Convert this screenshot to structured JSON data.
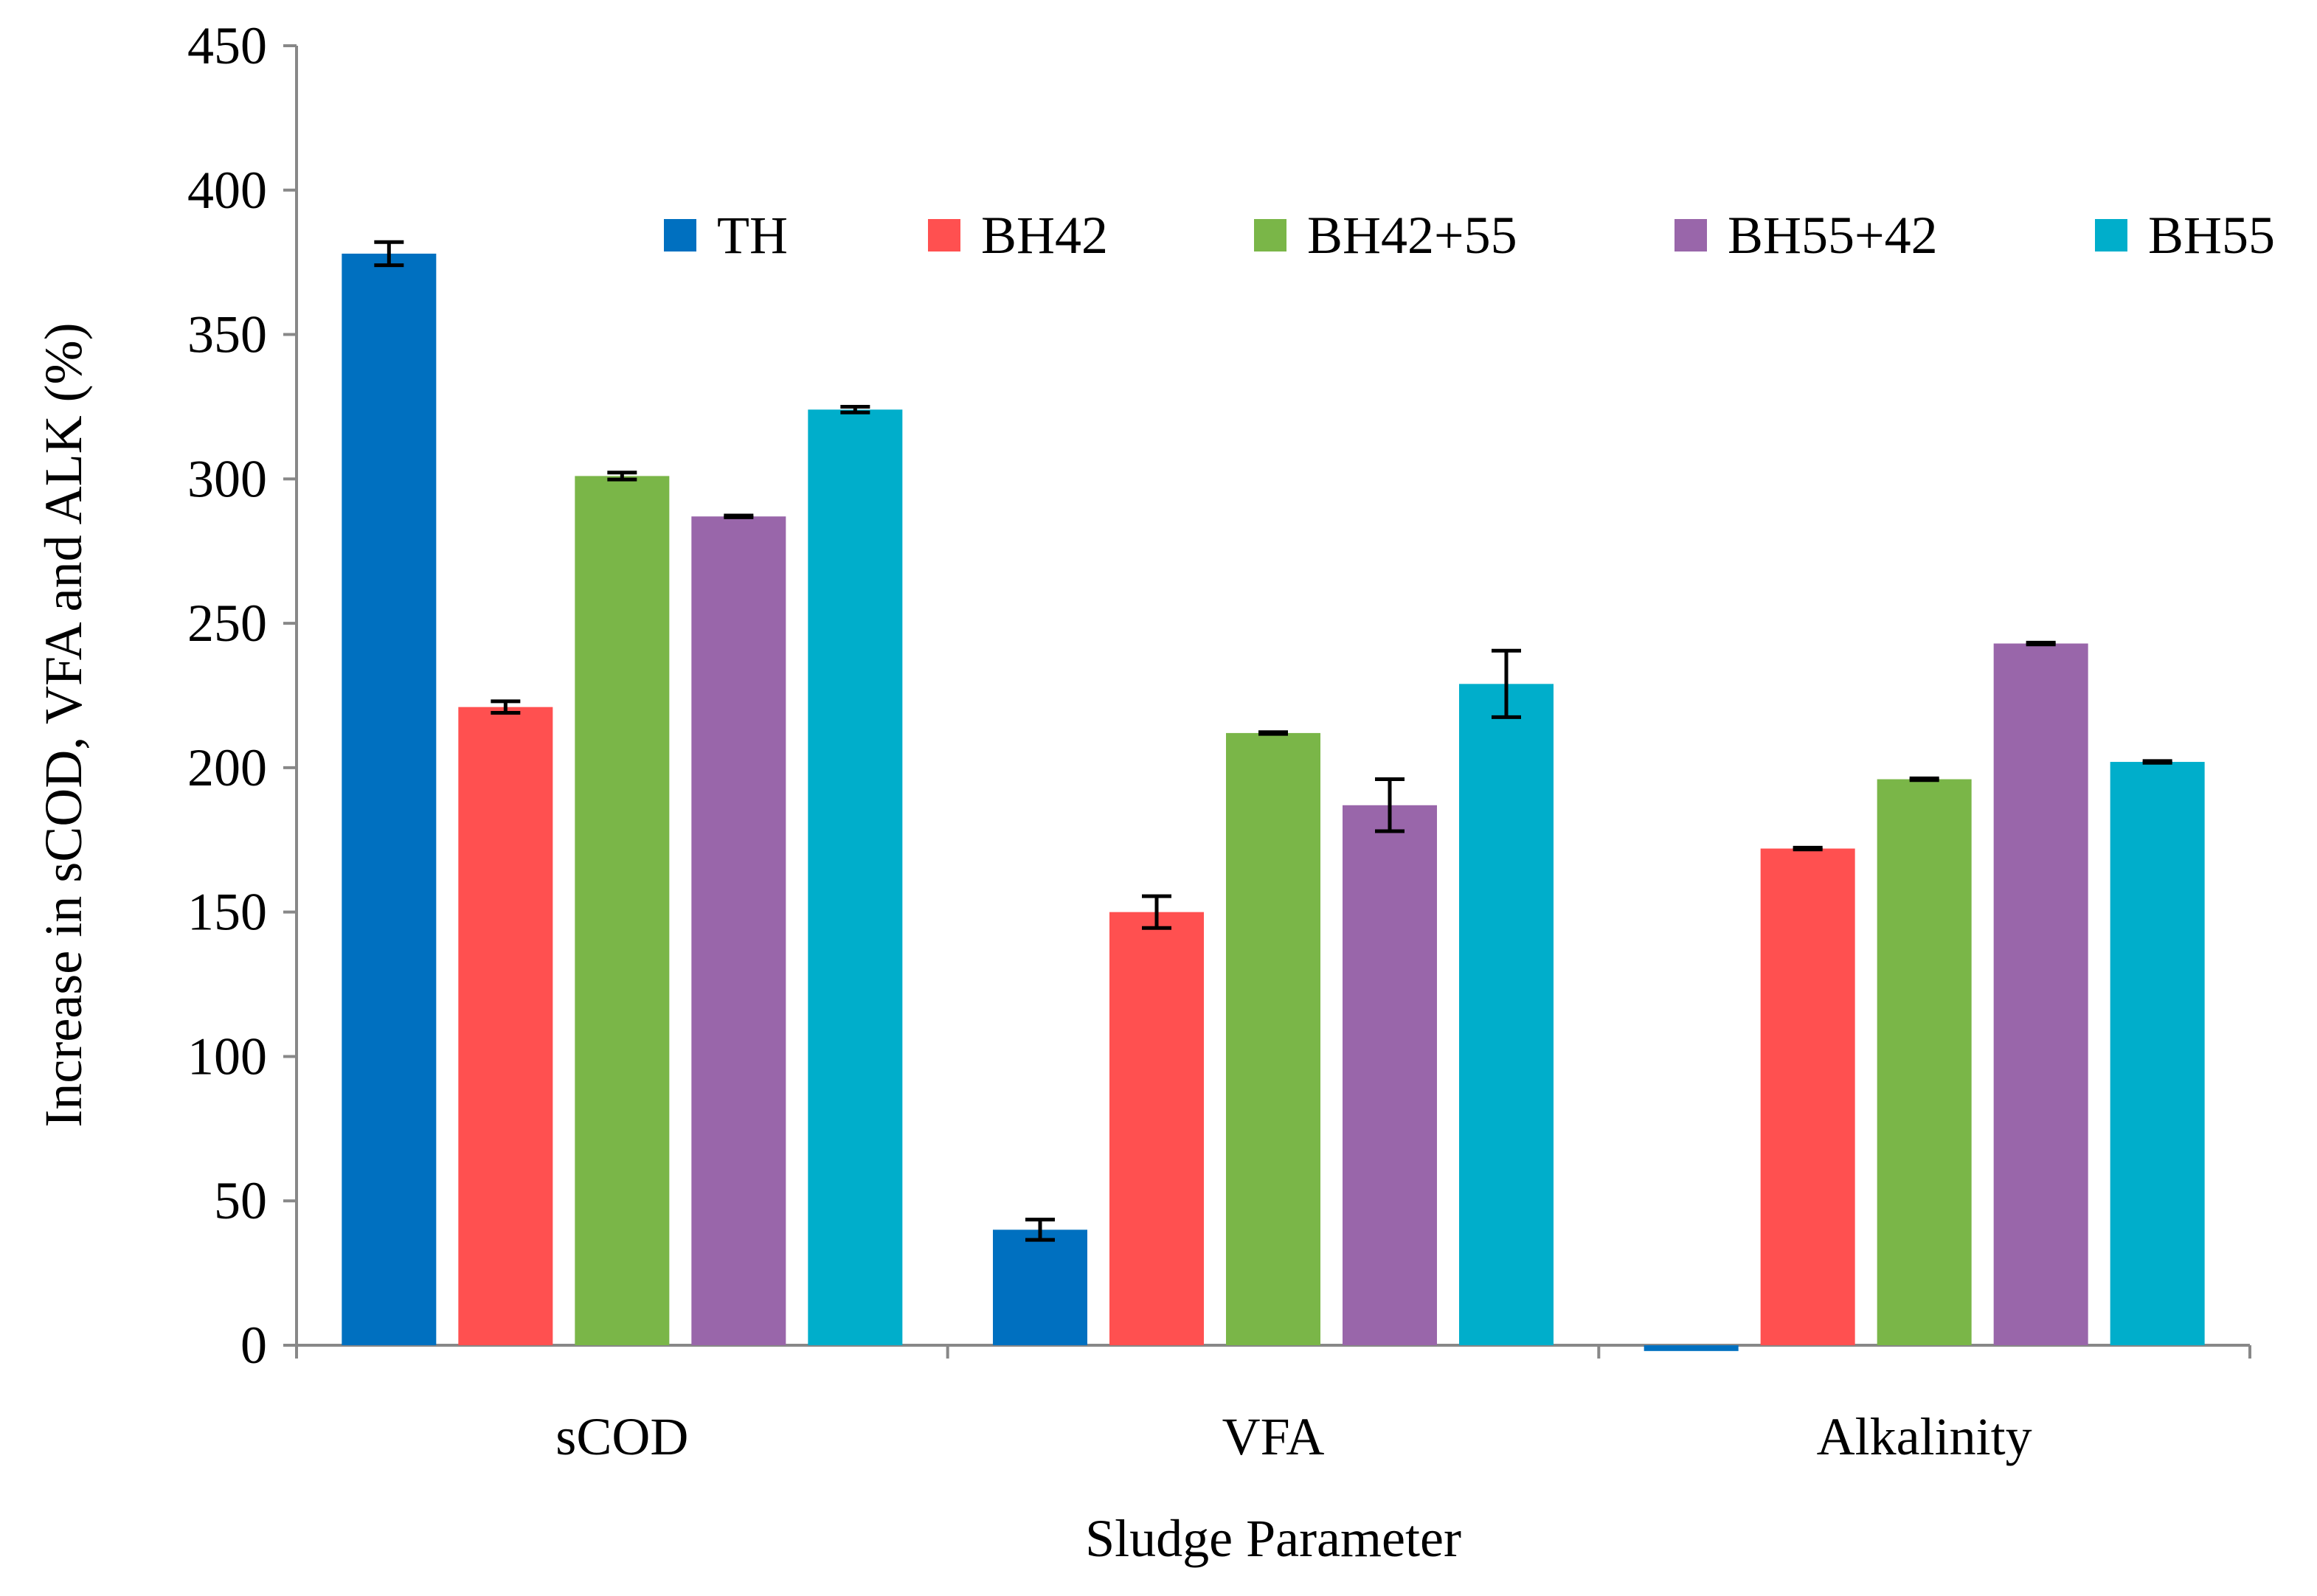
{
  "chart_data": {
    "type": "bar",
    "title": "",
    "xlabel": "Sludge Parameter",
    "ylabel": "Increase in sCOD, VFA and ALK (%)",
    "ylim": [
      0,
      450
    ],
    "yticks": [
      0,
      50,
      100,
      150,
      200,
      250,
      300,
      350,
      400,
      450
    ],
    "ytick_labels": [
      "0",
      "50",
      "100",
      "150",
      "200",
      "250",
      "300",
      "350",
      "400",
      "450"
    ],
    "grid": false,
    "legend_position": "top-right",
    "categories": [
      "sCOD",
      "VFA",
      "Alkalinity"
    ],
    "series": [
      {
        "name": "TH",
        "color": "#0070C0",
        "values": [
          378,
          40,
          -2
        ],
        "errors": [
          4,
          3.5,
          0
        ]
      },
      {
        "name": "BH42",
        "color": "#FF5050",
        "values": [
          221,
          150,
          172
        ],
        "errors": [
          2,
          5.5,
          0.3
        ]
      },
      {
        "name": "BH42+55",
        "color": "#7AB648",
        "values": [
          301,
          212,
          196
        ],
        "errors": [
          1.2,
          0.3,
          0.3
        ]
      },
      {
        "name": "BH55+42",
        "color": "#9966AA",
        "values": [
          287,
          187,
          243
        ],
        "errors": [
          0.3,
          9,
          0.3
        ]
      },
      {
        "name": "BH55",
        "color": "#00AECB",
        "values": [
          324,
          229,
          202
        ],
        "errors": [
          1,
          11.5,
          0.3
        ]
      }
    ]
  }
}
